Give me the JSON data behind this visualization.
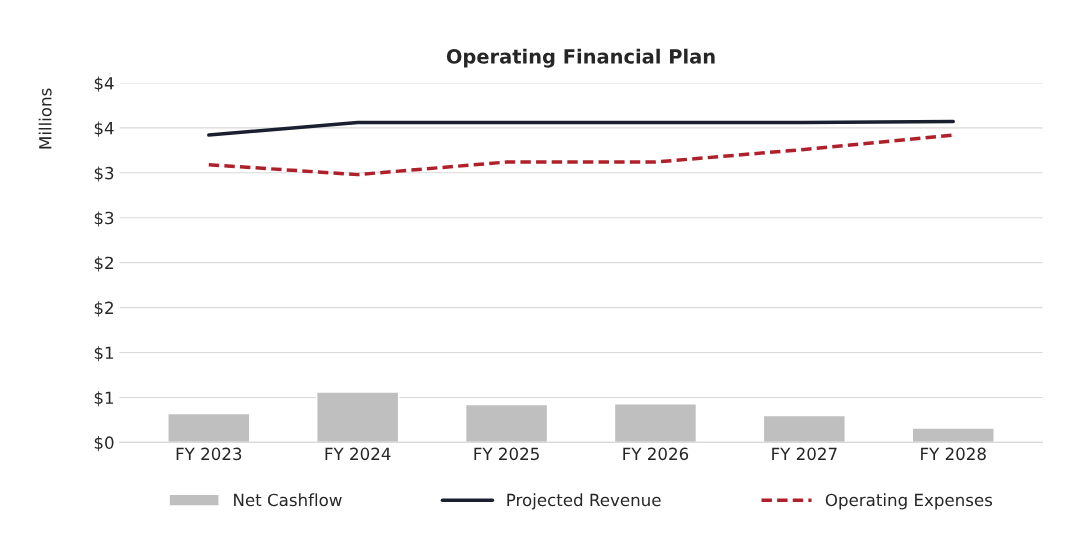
{
  "chart_data": {
    "type": "bar",
    "title": "Operating Financial Plan",
    "ylabel": "Millions",
    "categories": [
      "FY 2023",
      "FY 2024",
      "FY 2025",
      "FY 2026",
      "FY 2027",
      "FY 2028"
    ],
    "series": [
      {
        "name": "Net Cashflow",
        "color": "#bfbfbf",
        "values": [
          0.32,
          0.56,
          0.42,
          0.43,
          0.3,
          0.16
        ]
      },
      {
        "name": "Projected Revenue",
        "type": "line",
        "color": "#1b2030",
        "line_style": "solid",
        "values": [
          3.42,
          3.56,
          3.56,
          3.56,
          3.56,
          3.57
        ]
      },
      {
        "name": "Operating Expenses",
        "type": "line",
        "color": "#b0202a",
        "line_style": "dashed",
        "values": [
          3.09,
          2.98,
          3.12,
          3.12,
          3.26,
          3.42
        ]
      }
    ],
    "ylim": [
      0,
      4
    ],
    "yticks": [
      {
        "value": 0,
        "label": "$0"
      },
      {
        "value": 0.5,
        "label": "$1"
      },
      {
        "value": 1,
        "label": "$1"
      },
      {
        "value": 1.5,
        "label": "$2"
      },
      {
        "value": 2,
        "label": "$2"
      },
      {
        "value": 2.5,
        "label": "$3"
      },
      {
        "value": 3,
        "label": "$3"
      },
      {
        "value": 3.5,
        "label": "$4"
      },
      {
        "value": 4,
        "label": "$4"
      }
    ],
    "grid": "y",
    "legend": "bottom"
  }
}
